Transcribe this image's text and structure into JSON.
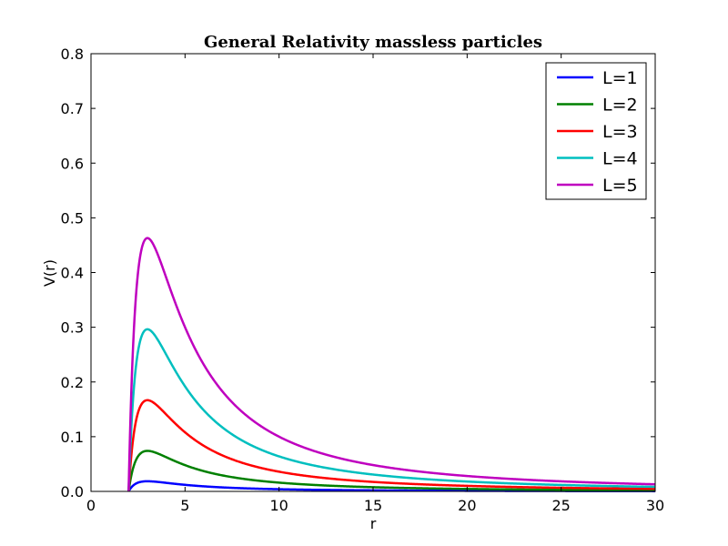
{
  "chart_data": {
    "type": "line",
    "title": "General Relativity massless particles",
    "xlabel": "r",
    "ylabel": "V(r)",
    "xlim": [
      0,
      30
    ],
    "ylim": [
      0,
      0.8
    ],
    "xticks": [
      0,
      5,
      10,
      15,
      20,
      25,
      30
    ],
    "xtick_labels": [
      "0",
      "5",
      "10",
      "15",
      "20",
      "25",
      "30"
    ],
    "yticks": [
      0,
      0.1,
      0.2,
      0.3,
      0.4,
      0.5,
      0.6,
      0.7,
      0.8
    ],
    "ytick_labels": [
      "0.0",
      "0.1",
      "0.2",
      "0.3",
      "0.4",
      "0.5",
      "0.6",
      "0.7",
      "0.8"
    ],
    "grid": false,
    "legend_position": "top-right",
    "function": "V(r) = (1 - 2/r) * L^2 / (2 r^2)",
    "r_range": [
      2,
      30
    ],
    "series": [
      {
        "name": "L=1",
        "L": 1,
        "color": "#0000ff",
        "peak": {
          "r": 3,
          "V": 0.0185
        }
      },
      {
        "name": "L=2",
        "L": 2,
        "color": "#008000",
        "peak": {
          "r": 3,
          "V": 0.0741
        }
      },
      {
        "name": "L=3",
        "L": 3,
        "color": "#ff0000",
        "peak": {
          "r": 3,
          "V": 0.1667
        }
      },
      {
        "name": "L=4",
        "L": 4,
        "color": "#00bfbf",
        "peak": {
          "r": 3,
          "V": 0.2963
        }
      },
      {
        "name": "L=5",
        "L": 5,
        "color": "#bf00bf",
        "peak": {
          "r": 3,
          "V": 0.463
        }
      }
    ]
  }
}
